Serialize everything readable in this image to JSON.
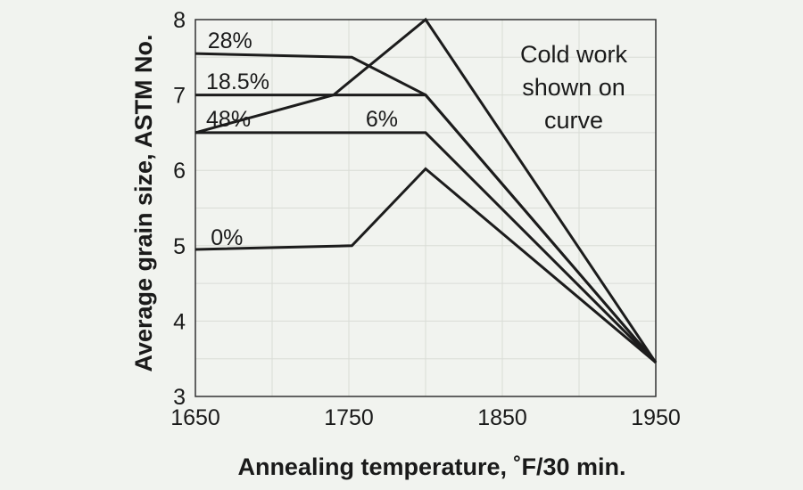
{
  "chart_data": {
    "type": "line",
    "xlabel": "Annealing temperature, ˚F/30 min.",
    "ylabel": "Average grain size, ASTM No.",
    "xlim": [
      1650,
      1950
    ],
    "ylim": [
      3,
      8
    ],
    "xticks": [
      1650,
      1750,
      1850,
      1950
    ],
    "yticks": [
      3,
      4,
      5,
      6,
      7,
      8
    ],
    "grid": true,
    "annotation": [
      "Cold work",
      "shown on",
      "curve"
    ],
    "series": [
      {
        "name": "28%",
        "x": [
          1650,
          1752,
          1800,
          1950
        ],
        "y": [
          7.55,
          7.5,
          7.0,
          3.45
        ]
      },
      {
        "name": "18.5%",
        "x": [
          1650,
          1800,
          1950
        ],
        "y": [
          7.0,
          7.0,
          3.45
        ]
      },
      {
        "name": "48%",
        "x": [
          1650,
          1740,
          1800,
          1950
        ],
        "y": [
          6.5,
          7.0,
          8.0,
          3.45
        ]
      },
      {
        "name": "6%",
        "x": [
          1650,
          1800,
          1950
        ],
        "y": [
          6.5,
          6.5,
          3.45
        ]
      },
      {
        "name": "0%",
        "x": [
          1650,
          1752,
          1800,
          1950
        ],
        "y": [
          4.95,
          5.0,
          6.02,
          3.45
        ]
      }
    ]
  }
}
